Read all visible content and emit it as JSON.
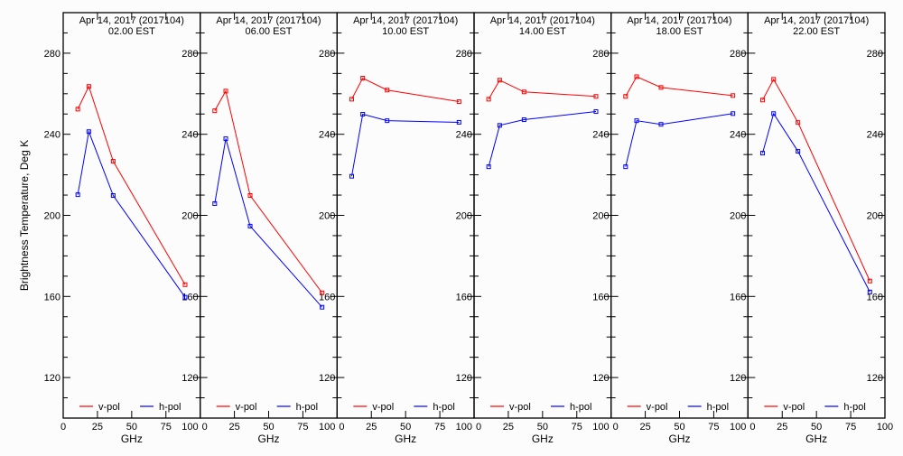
{
  "chart_data": [
    {
      "type": "line",
      "title": "Apr 14, 2017 (2017104)",
      "subtitle": "02.00 EST",
      "xlabel": "GHz",
      "ylabel": "Brightness Temperature, Deg K",
      "xlim": [
        0,
        100
      ],
      "ylim": [
        100,
        300
      ],
      "xticks": [
        0,
        25,
        50,
        75,
        100
      ],
      "yticks": [
        120,
        160,
        200,
        240,
        280
      ],
      "legend": "bottom",
      "x": [
        10.65,
        18.7,
        36.5,
        89
      ],
      "series": [
        {
          "name": "v-pol",
          "color": "#ff0000",
          "values": [
            252.4,
            263.6,
            226.7,
            165.8
          ]
        },
        {
          "name": "h-pol",
          "color": "#0000ff",
          "values": [
            210.2,
            241.3,
            209.8,
            159.6
          ]
        }
      ]
    },
    {
      "type": "line",
      "title": "Apr 14, 2017 (2017104)",
      "subtitle": "06.00 EST",
      "xlabel": "GHz",
      "xlim": [
        0,
        100
      ],
      "ylim": [
        100,
        300
      ],
      "xticks": [
        0,
        25,
        50,
        75,
        100
      ],
      "yticks": [
        120,
        160,
        200,
        240,
        280
      ],
      "legend": "bottom",
      "x": [
        10.65,
        18.7,
        36.5,
        89
      ],
      "series": [
        {
          "name": "v-pol",
          "color": "#ff0000",
          "values": [
            251.6,
            261.3,
            209.8,
            161.8
          ]
        },
        {
          "name": "h-pol",
          "color": "#0000ff",
          "values": [
            205.8,
            237.8,
            194.7,
            154.7
          ]
        }
      ]
    },
    {
      "type": "line",
      "title": "Apr 14, 2017 (2017104)",
      "subtitle": "10.00 EST",
      "xlabel": "GHz",
      "xlim": [
        0,
        100
      ],
      "ylim": [
        100,
        300
      ],
      "xticks": [
        0,
        25,
        50,
        75,
        100
      ],
      "yticks": [
        120,
        160,
        200,
        240,
        280
      ],
      "legend": "bottom",
      "x": [
        10.65,
        18.7,
        36.5,
        89
      ],
      "series": [
        {
          "name": "v-pol",
          "color": "#ff0000",
          "values": [
            257.3,
            267.7,
            261.8,
            256.1
          ]
        },
        {
          "name": "h-pol",
          "color": "#0000ff",
          "values": [
            219.3,
            249.9,
            246.7,
            245.9
          ]
        }
      ]
    },
    {
      "type": "line",
      "title": "Apr 14, 2017 (2017104)",
      "subtitle": "14.00 EST",
      "xlabel": "GHz",
      "xlim": [
        0,
        100
      ],
      "ylim": [
        100,
        300
      ],
      "xticks": [
        0,
        25,
        50,
        75,
        100
      ],
      "yticks": [
        120,
        160,
        200,
        240,
        280
      ],
      "legend": "bottom",
      "x": [
        10.65,
        18.7,
        36.5,
        89
      ],
      "series": [
        {
          "name": "v-pol",
          "color": "#ff0000",
          "values": [
            257.3,
            266.7,
            260.9,
            258.7
          ]
        },
        {
          "name": "h-pol",
          "color": "#0000ff",
          "values": [
            224.0,
            244.4,
            247.2,
            251.2
          ]
        }
      ]
    },
    {
      "type": "line",
      "title": "Apr 14, 2017 (2017104)",
      "subtitle": "18.00 EST",
      "xlabel": "GHz",
      "xlim": [
        0,
        100
      ],
      "ylim": [
        100,
        300
      ],
      "xticks": [
        0,
        25,
        50,
        75,
        100
      ],
      "yticks": [
        120,
        160,
        200,
        240,
        280
      ],
      "legend": "bottom",
      "x": [
        10.65,
        18.7,
        36.5,
        89
      ],
      "series": [
        {
          "name": "v-pol",
          "color": "#ff0000",
          "values": [
            258.7,
            268.4,
            263.1,
            259.1
          ]
        },
        {
          "name": "h-pol",
          "color": "#0000ff",
          "values": [
            224.0,
            246.7,
            244.9,
            250.2
          ]
        }
      ]
    },
    {
      "type": "line",
      "title": "Apr 14, 2017 (2017104)",
      "subtitle": "22.00 EST",
      "xlabel": "GHz",
      "xlim": [
        0,
        100
      ],
      "ylim": [
        100,
        300
      ],
      "xticks": [
        0,
        25,
        50,
        75,
        100
      ],
      "yticks": [
        120,
        160,
        200,
        240,
        280
      ],
      "legend": "bottom",
      "x": [
        10.65,
        18.7,
        36.5,
        89
      ],
      "series": [
        {
          "name": "v-pol",
          "color": "#ff0000",
          "values": [
            256.9,
            267.1,
            245.8,
            167.6
          ]
        },
        {
          "name": "h-pol",
          "color": "#0000ff",
          "values": [
            230.7,
            250.2,
            231.6,
            162.2
          ]
        }
      ]
    }
  ]
}
